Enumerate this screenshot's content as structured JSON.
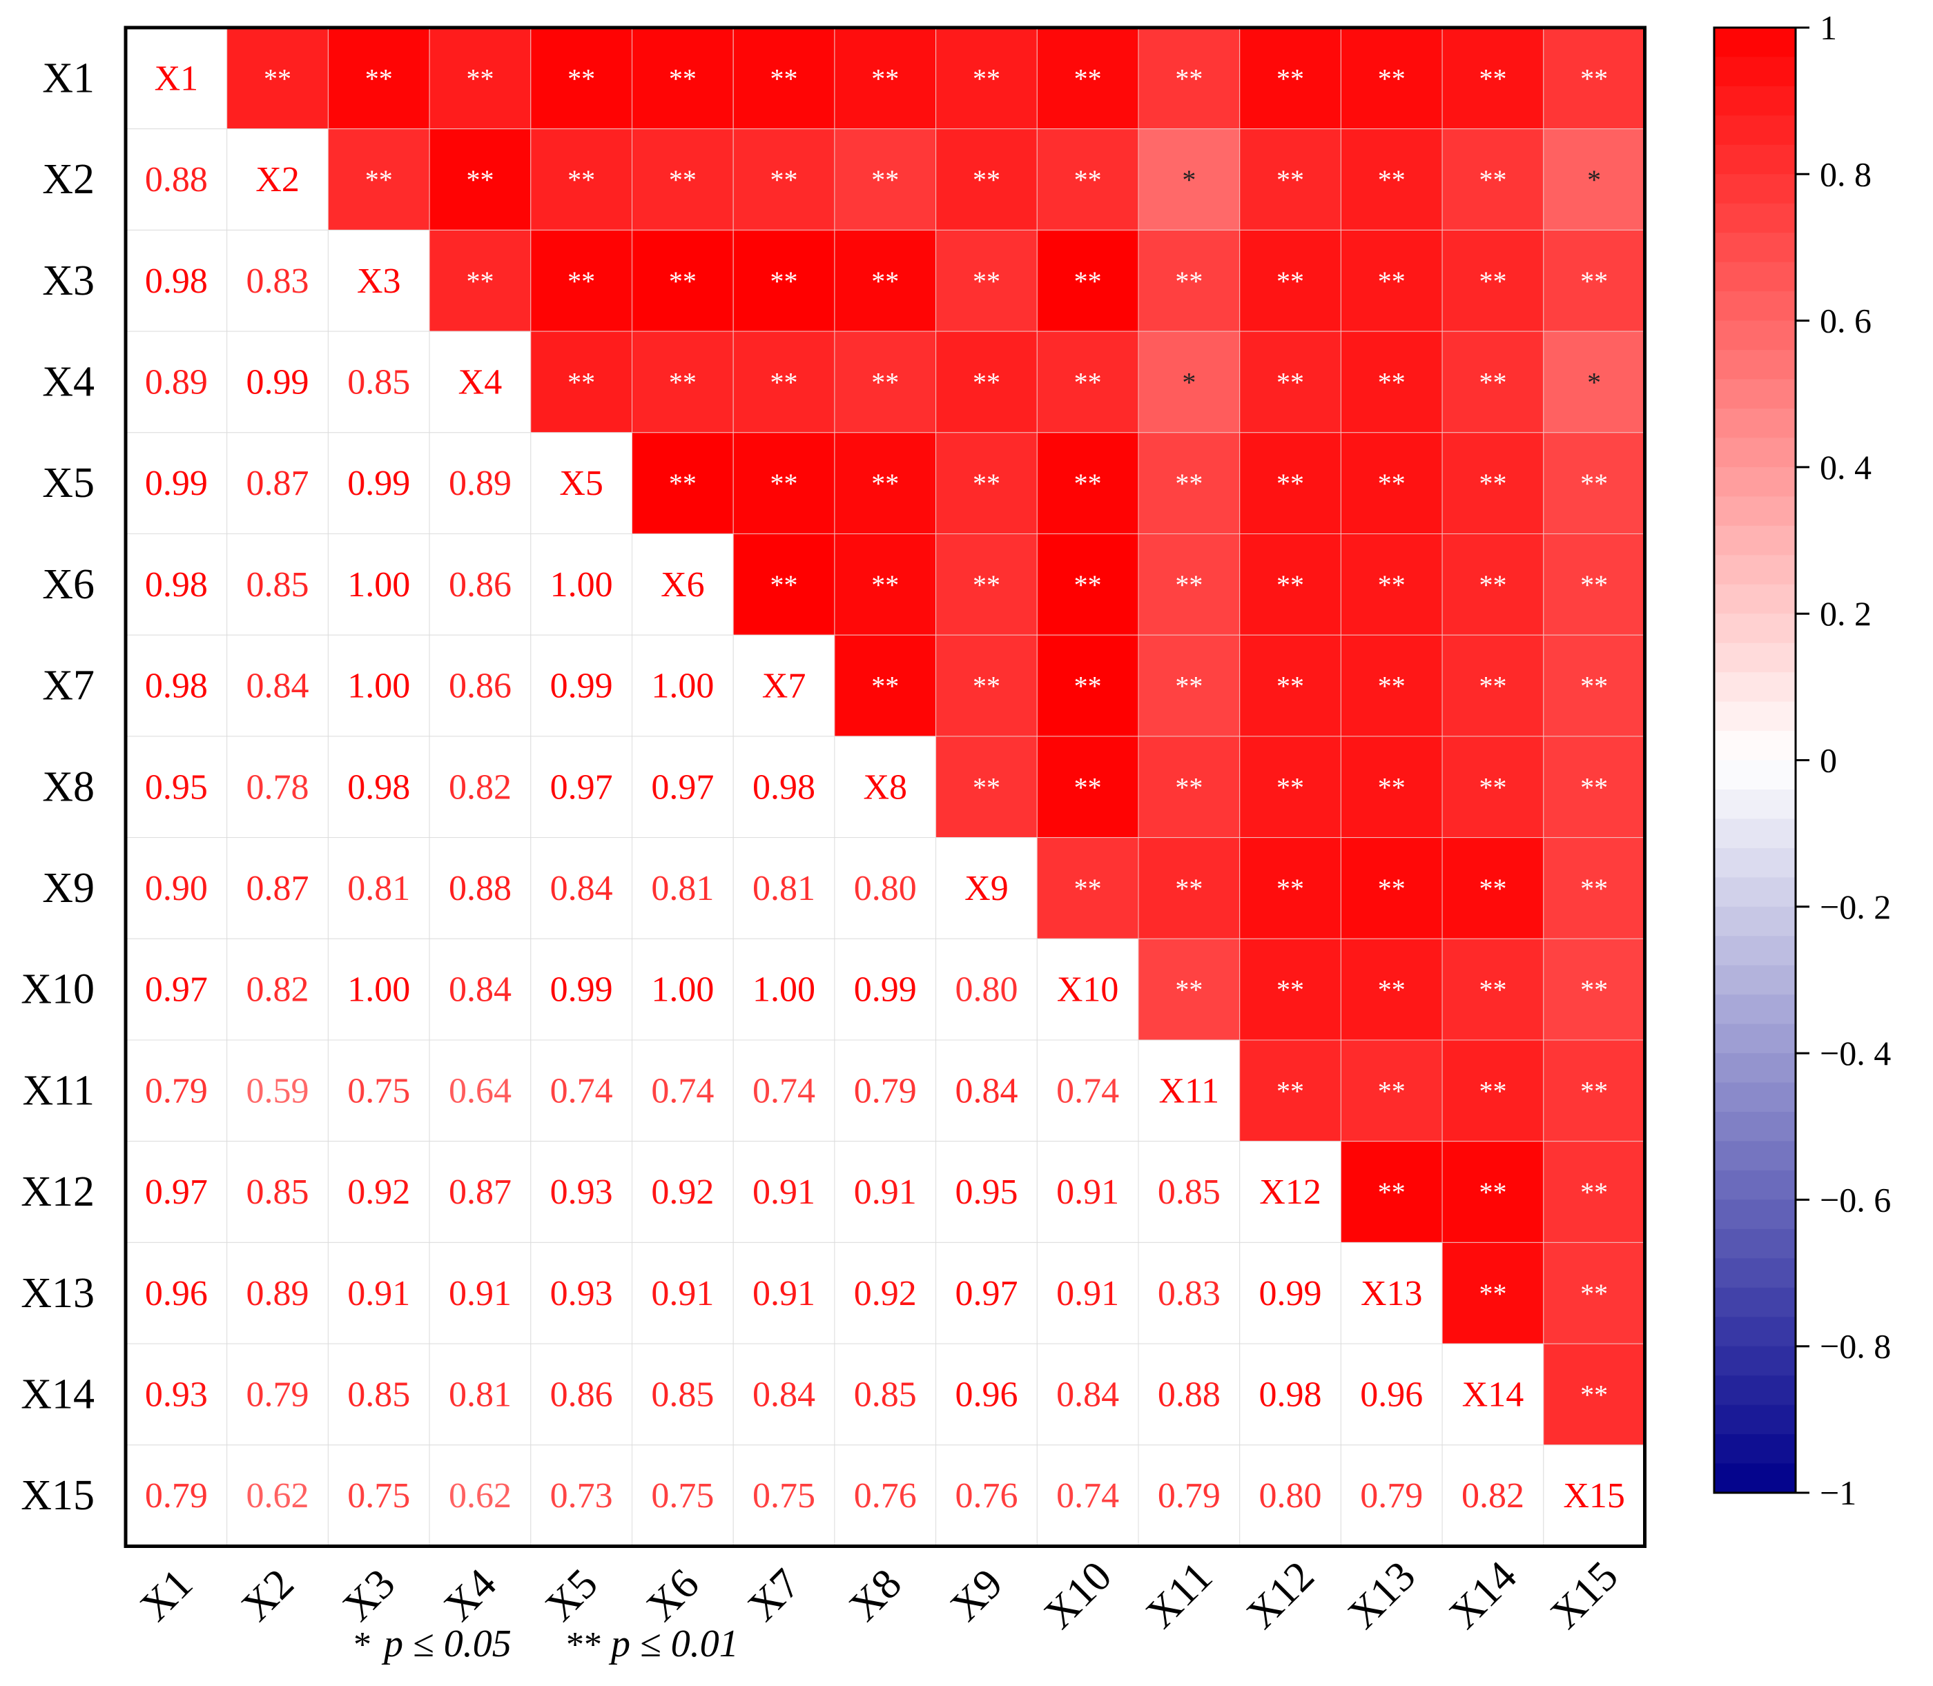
{
  "chart_data": {
    "type": "heatmap",
    "variables": [
      "X1",
      "X2",
      "X3",
      "X4",
      "X5",
      "X6",
      "X7",
      "X8",
      "X9",
      "X10",
      "X11",
      "X12",
      "X13",
      "X14",
      "X15"
    ],
    "lower_triangle_rows": [
      [],
      [
        0.88
      ],
      [
        0.98,
        0.83
      ],
      [
        0.89,
        0.99,
        0.85
      ],
      [
        0.99,
        0.87,
        0.99,
        0.89
      ],
      [
        0.98,
        0.85,
        1.0,
        0.86,
        1.0
      ],
      [
        0.98,
        0.84,
        1.0,
        0.86,
        0.99,
        1.0
      ],
      [
        0.95,
        0.78,
        0.98,
        0.82,
        0.97,
        0.97,
        0.98
      ],
      [
        0.9,
        0.87,
        0.81,
        0.88,
        0.84,
        0.81,
        0.81,
        0.8
      ],
      [
        0.97,
        0.82,
        1.0,
        0.84,
        0.99,
        1.0,
        1.0,
        0.99,
        0.8
      ],
      [
        0.79,
        0.59,
        0.75,
        0.64,
        0.74,
        0.74,
        0.74,
        0.79,
        0.84,
        0.74
      ],
      [
        0.97,
        0.85,
        0.92,
        0.87,
        0.93,
        0.92,
        0.91,
        0.91,
        0.95,
        0.91,
        0.85
      ],
      [
        0.96,
        0.89,
        0.91,
        0.91,
        0.93,
        0.91,
        0.91,
        0.92,
        0.97,
        0.91,
        0.83,
        0.99
      ],
      [
        0.93,
        0.79,
        0.85,
        0.81,
        0.86,
        0.85,
        0.84,
        0.85,
        0.96,
        0.84,
        0.88,
        0.98,
        0.96
      ],
      [
        0.79,
        0.62,
        0.75,
        0.62,
        0.73,
        0.75,
        0.75,
        0.76,
        0.76,
        0.74,
        0.79,
        0.8,
        0.79,
        0.82
      ]
    ],
    "significance_marks": {
      "single": "*",
      "double": "**",
      "single_pairs": [
        [
          "X2",
          "X11"
        ],
        [
          "X2",
          "X15"
        ],
        [
          "X4",
          "X11"
        ],
        [
          "X4",
          "X15"
        ]
      ]
    },
    "colorbar": {
      "min": -1,
      "max": 1,
      "ticks": [
        1,
        0.8,
        0.6,
        0.4,
        0.2,
        0,
        -0.2,
        -0.4,
        -0.6,
        -0.8,
        -1
      ],
      "tick_labels": [
        "1",
        "0. 8",
        "0. 6",
        "0. 4",
        "0. 2",
        "0",
        "−0. 2",
        "−0. 4",
        "−0. 6",
        "−0. 8",
        "−1"
      ],
      "colors": {
        "high": "#ff0000",
        "mid": "#ffffff",
        "low": "#00008b"
      }
    },
    "note": {
      "single_mark": "*",
      "single_text": "p ≤ 0.05",
      "double_mark": "**",
      "double_text": "p ≤ 0.01"
    },
    "title": "",
    "xlabel": "",
    "ylabel": "",
    "grid": true,
    "legend": "right"
  }
}
